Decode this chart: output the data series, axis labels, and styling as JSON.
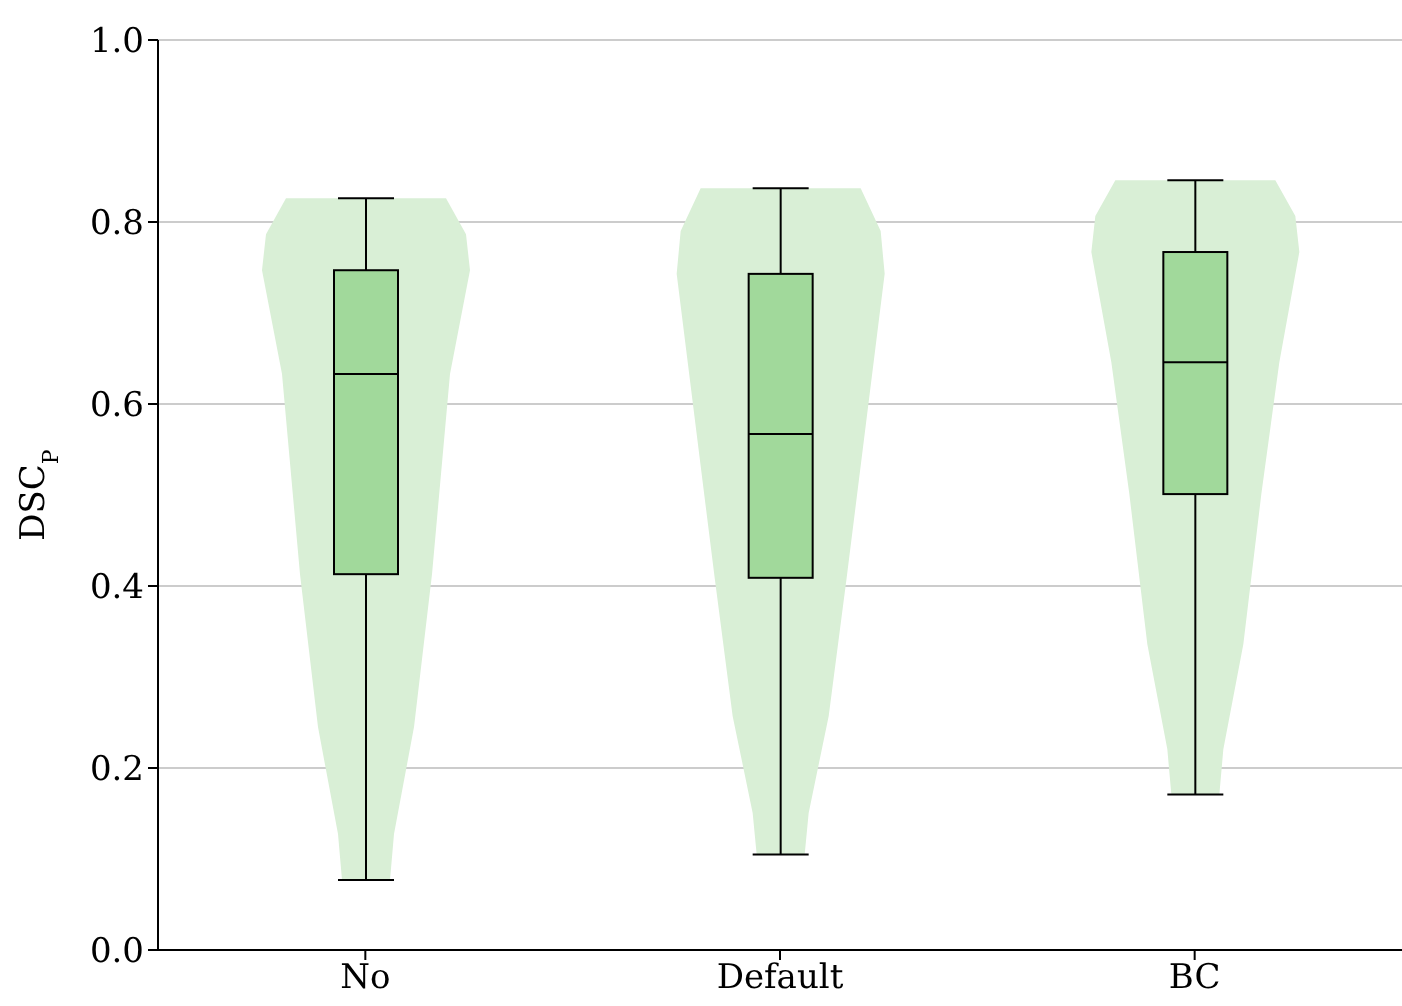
{
  "chart_data": {
    "type": "box",
    "ylabel": "DSC$_{P}$",
    "categories": [
      "No",
      "Default",
      "BC"
    ],
    "boxes": [
      {
        "low": 0.077,
        "q1": 0.413,
        "median": 0.633,
        "q3": 0.747,
        "high": 0.826
      },
      {
        "low": 0.105,
        "q1": 0.409,
        "median": 0.567,
        "q3": 0.743,
        "high": 0.837
      },
      {
        "low": 0.171,
        "q1": 0.501,
        "median": 0.646,
        "q3": 0.767,
        "high": 0.846
      }
    ],
    "color": "#a1d99b",
    "ylim": [
      0,
      1
    ],
    "yticks": [
      {
        "value": 0,
        "label": "0.0"
      },
      0.2,
      0.4,
      0.6,
      0.8,
      {
        "value": 1,
        "label": "1.0"
      }
    ],
    "grid": "y"
  }
}
